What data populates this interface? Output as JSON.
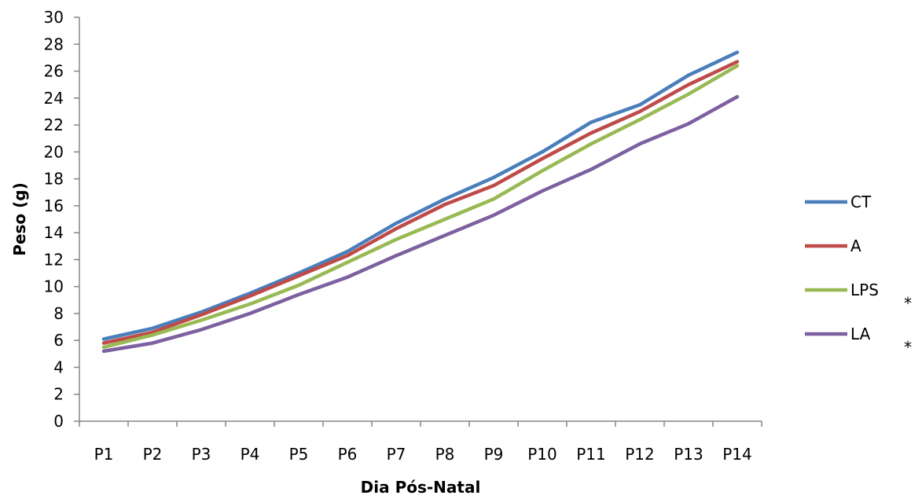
{
  "chart_data": {
    "type": "line",
    "title": "",
    "xlabel": "Dia Pós-Natal",
    "ylabel": "Peso (g)",
    "ylim": [
      0,
      30
    ],
    "yticks": [
      0,
      2,
      4,
      6,
      8,
      10,
      12,
      14,
      16,
      18,
      20,
      22,
      24,
      26,
      28,
      30
    ],
    "grid": false,
    "legend_position": "right",
    "categories": [
      "P1",
      "P2",
      "P3",
      "P4",
      "P5",
      "P6",
      "P7",
      "P8",
      "P9",
      "P10",
      "P11",
      "P12",
      "P13",
      "P14"
    ],
    "series": [
      {
        "name": "CT",
        "color": "#4a7ebb",
        "marker": "",
        "values": [
          6.1,
          6.9,
          8.1,
          9.5,
          11.0,
          12.6,
          14.7,
          16.5,
          18.1,
          20.0,
          22.2,
          23.5,
          25.7,
          27.4
        ]
      },
      {
        "name": "A",
        "color": "#be4b48",
        "marker": "",
        "values": [
          5.8,
          6.6,
          7.9,
          9.3,
          10.8,
          12.3,
          14.3,
          16.1,
          17.5,
          19.5,
          21.4,
          23.0,
          25.0,
          26.7
        ]
      },
      {
        "name": "LPS",
        "color": "#98b954",
        "marker": "*",
        "values": [
          5.5,
          6.4,
          7.5,
          8.7,
          10.1,
          11.8,
          13.5,
          15.0,
          16.5,
          18.6,
          20.6,
          22.4,
          24.3,
          26.4
        ]
      },
      {
        "name": "LA",
        "color": "#7d60a0",
        "marker": "*",
        "values": [
          5.2,
          5.8,
          6.8,
          8.0,
          9.4,
          10.7,
          12.3,
          13.8,
          15.3,
          17.1,
          18.7,
          20.6,
          22.1,
          24.1
        ]
      }
    ]
  }
}
